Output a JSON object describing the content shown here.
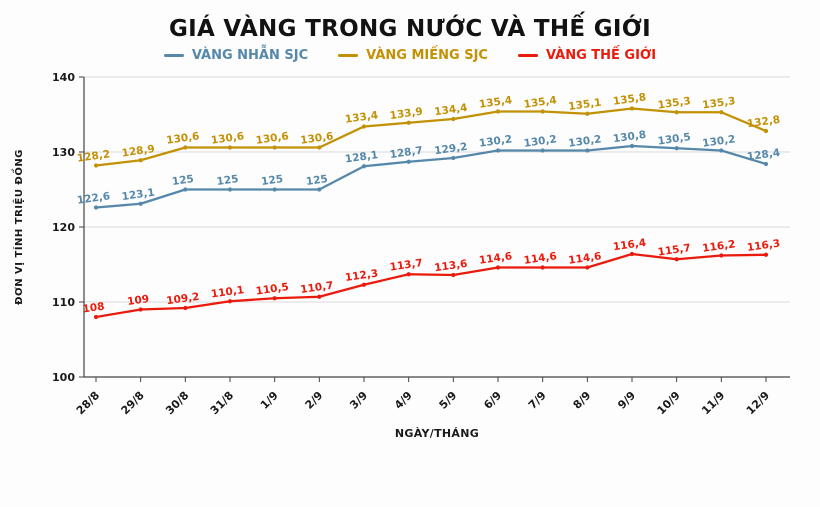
{
  "title": "GIÁ VÀNG TRONG NƯỚC VÀ THẾ GIỚI",
  "legend": [
    {
      "label": "VÀNG NHẪN SJC",
      "color": "#5588aa"
    },
    {
      "label": "VÀNG MIẾNG SJC",
      "color": "#c29104"
    },
    {
      "label": "VÀNG THẾ GIỚI",
      "color": "#ea1a0c"
    }
  ],
  "chart_data": {
    "type": "line",
    "title": "GIÁ VÀNG TRONG NƯỚC VÀ THẾ GIỚI",
    "xlabel": "NGÀY/THÁNG",
    "ylabel": "ĐƠN VỊ TÍNH TRIỆU ĐỒNG",
    "ylim": [
      100,
      140
    ],
    "yticks": [
      100,
      110,
      120,
      130,
      140
    ],
    "grid": true,
    "legend_position": "top",
    "categories": [
      "28/8",
      "29/8",
      "30/8",
      "31/8",
      "1/9",
      "2/9",
      "3/9",
      "4/9",
      "5/9",
      "6/9",
      "7/9",
      "8/9",
      "9/9",
      "10/9",
      "11/9",
      "12/9"
    ],
    "series": [
      {
        "name": "VÀNG NHẪN SJC",
        "color": "#5588aa",
        "values": [
          122.6,
          123.1,
          125,
          125,
          125,
          125,
          128.1,
          128.7,
          129.2,
          130.2,
          130.2,
          130.2,
          130.8,
          130.5,
          130.2,
          128.4
        ],
        "labels": [
          "122,6",
          "123,1",
          "125",
          "125",
          "125",
          "125",
          "128,1",
          "128,7",
          "129,2",
          "130,2",
          "130,2",
          "130,2",
          "130,8",
          "130,5",
          "130,2",
          "128,4"
        ]
      },
      {
        "name": "VÀNG MIẾNG SJC",
        "color": "#c29104",
        "values": [
          128.2,
          128.9,
          130.6,
          130.6,
          130.6,
          130.6,
          133.4,
          133.9,
          134.4,
          135.4,
          135.4,
          135.1,
          135.8,
          135.3,
          135.3,
          132.8
        ],
        "labels": [
          "128,2",
          "128,9",
          "130,6",
          "130,6",
          "130,6",
          "130,6",
          "133,4",
          "133,9",
          "134,4",
          "135,4",
          "135,4",
          "135,1",
          "135,8",
          "135,3",
          "135,3",
          "132,8"
        ]
      },
      {
        "name": "VÀNG THẾ GIỚI",
        "color": "#ea1a0c",
        "values": [
          108,
          109,
          109.2,
          110.1,
          110.5,
          110.7,
          112.3,
          113.7,
          113.6,
          114.6,
          114.6,
          114.6,
          116.4,
          115.7,
          116.2,
          116.3
        ],
        "labels": [
          "108",
          "109",
          "109,2",
          "110,1",
          "110,5",
          "110,7",
          "112,3",
          "113,7",
          "113,6",
          "114,6",
          "114,6",
          "114,6",
          "116,4",
          "115,7",
          "116,2",
          "116,3"
        ]
      }
    ]
  }
}
